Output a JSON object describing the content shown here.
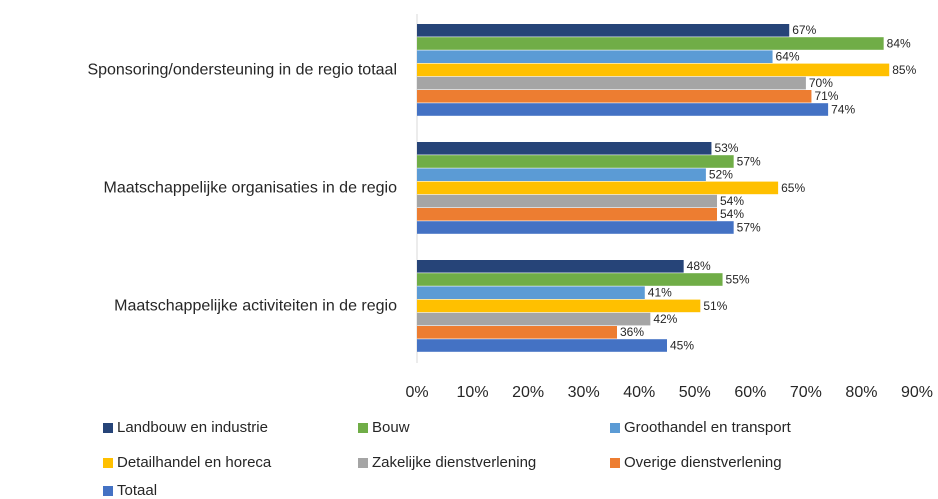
{
  "chart_data": {
    "type": "bar",
    "orientation": "horizontal",
    "categories": [
      "Sponsoring/ondersteuning in de regio totaal",
      "Maatschappelijke organisaties in de regio",
      "Maatschappelijke activiteiten in de regio"
    ],
    "series": [
      {
        "name": "Landbouw en industrie",
        "color": "#264478",
        "values": [
          67,
          53,
          48
        ],
        "value_labels": [
          "67%",
          "53%",
          "48%"
        ]
      },
      {
        "name": "Bouw",
        "color": "#70ad47",
        "values": [
          84,
          57,
          55
        ],
        "value_labels": [
          "84%",
          "57%",
          "55%"
        ]
      },
      {
        "name": "Groothandel en transport",
        "color": "#5b9bd5",
        "values": [
          64,
          52,
          41
        ],
        "value_labels": [
          "64%",
          "52%",
          "41%"
        ]
      },
      {
        "name": "Detailhandel en horeca",
        "color": "#ffc000",
        "values": [
          85,
          65,
          51
        ],
        "value_labels": [
          "85%",
          "65%",
          "51%"
        ]
      },
      {
        "name": "Zakelijke dienstverlening",
        "color": "#a5a5a5",
        "values": [
          70,
          54,
          42
        ],
        "value_labels": [
          "70%",
          "54%",
          "42%"
        ]
      },
      {
        "name": "Overige dienstverlening",
        "color": "#ed7d31",
        "values": [
          71,
          54,
          36
        ],
        "value_labels": [
          "71%",
          "54%",
          "36%"
        ]
      },
      {
        "name": "Totaal",
        "color": "#4472c4",
        "values": [
          74,
          57,
          45
        ],
        "value_labels": [
          "74%",
          "57%",
          "45%"
        ]
      }
    ],
    "xlim": [
      0,
      90
    ],
    "xticks": [
      {
        "value": 0,
        "label": "0%"
      },
      {
        "value": 10,
        "label": "10%"
      },
      {
        "value": 20,
        "label": "20%"
      },
      {
        "value": 30,
        "label": "30%"
      },
      {
        "value": 40,
        "label": "40%"
      },
      {
        "value": 50,
        "label": "50%"
      },
      {
        "value": 60,
        "label": "60%"
      },
      {
        "value": 70,
        "label": "70%"
      },
      {
        "value": 80,
        "label": "80%"
      },
      {
        "value": 90,
        "label": "90%"
      }
    ],
    "grid": false,
    "legend": "bottom"
  }
}
